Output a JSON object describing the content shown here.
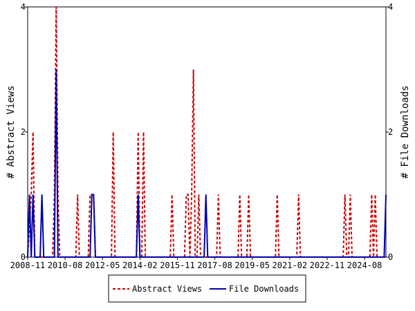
{
  "chart_data": {
    "type": "line",
    "y_label": "# Abstract Views",
    "y2_label": "# File Downloads",
    "xlim": [
      "2008-11",
      "2025-08"
    ],
    "xticks": [
      "2008-11",
      "2010-08",
      "2012-05",
      "2014-02",
      "2015-11",
      "2017-08",
      "2019-05",
      "2021-02",
      "2022-11",
      "2024-08"
    ],
    "ylim": [
      0,
      4
    ],
    "yticks": [
      0,
      2,
      4
    ],
    "y2lim": [
      0,
      4
    ],
    "y2ticks": [
      0,
      2,
      4
    ],
    "legend": "bottom",
    "series": [
      {
        "name": "Abstract Views",
        "color": "#cc0000",
        "dash": true,
        "x": [
          "2008-11",
          "2009-01",
          "2009-02",
          "2009-03",
          "2010-01",
          "2010-02",
          "2010-03",
          "2010-04",
          "2010-05",
          "2011-02",
          "2011-03",
          "2011-04",
          "2011-09",
          "2011-10",
          "2011-11",
          "2011-12",
          "2012-01",
          "2012-10",
          "2012-11",
          "2012-12",
          "2013-12",
          "2014-01",
          "2014-02",
          "2014-03",
          "2014-04",
          "2014-05",
          "2015-07",
          "2015-08",
          "2015-09",
          "2016-03",
          "2016-04",
          "2016-05",
          "2016-06",
          "2016-07",
          "2016-08",
          "2016-09",
          "2016-10",
          "2016-11",
          "2016-12",
          "2017-09",
          "2017-10",
          "2017-11",
          "2018-09",
          "2018-10",
          "2018-11",
          "2019-02",
          "2019-03",
          "2019-04",
          "2020-06",
          "2020-07",
          "2020-08",
          "2021-06",
          "2021-07",
          "2021-08",
          "2023-08",
          "2023-09",
          "2023-10",
          "2023-11",
          "2023-12",
          "2024-01",
          "2024-11",
          "2024-12",
          "2025-01",
          "2025-02",
          "2025-03",
          "2025-08"
        ],
        "values": [
          0,
          1,
          2,
          0,
          0,
          1,
          4,
          1,
          0,
          0,
          1,
          0,
          0,
          1,
          1,
          1,
          0,
          0,
          2,
          0,
          0,
          2,
          0,
          0,
          2,
          0,
          0,
          1,
          0,
          0,
          1,
          1,
          0,
          1,
          3,
          0,
          0,
          1,
          0,
          0,
          1,
          0,
          0,
          1,
          0,
          0,
          1,
          0,
          0,
          1,
          0,
          0,
          1,
          0,
          0,
          1,
          0,
          0,
          1,
          0,
          0,
          1,
          0,
          1,
          0,
          0
        ]
      },
      {
        "name": "File Downloads",
        "color": "#0000aa",
        "axis": "y2",
        "x": [
          "2008-11",
          "2008-12",
          "2009-01",
          "2009-02",
          "2009-03",
          "2009-06",
          "2009-07",
          "2009-08",
          "2010-02",
          "2010-03",
          "2010-04",
          "2011-10",
          "2011-11",
          "2011-12",
          "2012-01",
          "2013-12",
          "2014-01",
          "2014-02",
          "2017-02",
          "2017-03",
          "2017-04",
          "2025-07",
          "2025-08"
        ],
        "values": [
          0,
          1,
          0,
          1,
          0,
          0,
          1,
          0,
          0,
          3,
          0,
          0,
          1,
          1,
          0,
          0,
          1,
          0,
          0,
          1,
          0,
          0,
          1
        ]
      }
    ]
  }
}
